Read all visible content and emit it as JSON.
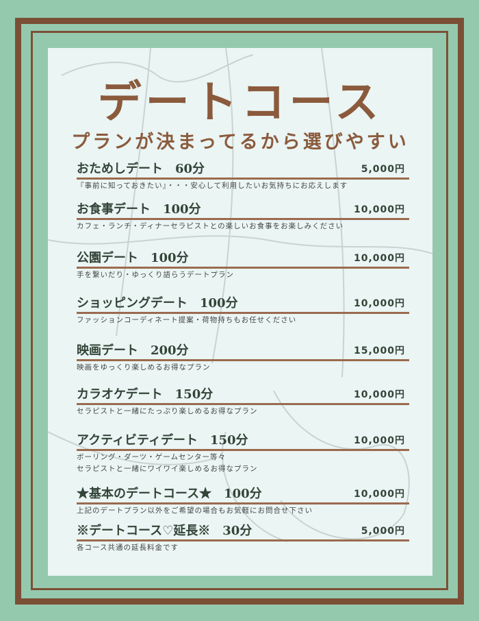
{
  "title": "デートコース",
  "subtitle": "プランが決まってるから選びやすい",
  "colors": {
    "background": "#95c9ae",
    "frame": "#7b4f35",
    "panel": "#eaf5f4",
    "title": "#8b5a3c",
    "text": "#334438"
  },
  "items": [
    {
      "name": "おためしデート　60分",
      "price": "5,000円",
      "desc": [
        "『事前に知っておきたい』・・・安心して利用したいお気持ちにお応えします"
      ]
    },
    {
      "name": "お食事デート　100分",
      "price": "10,000円",
      "desc": [
        "カフェ・ランチ・ディナーセラピストとの楽しいお食事をお楽しみください"
      ]
    },
    {
      "name": "公園デート　100分",
      "price": "10,000円",
      "desc": [
        "手を繋いだり・ゆっくり語らうデートプラン"
      ]
    },
    {
      "name": "ショッピングデート　100分",
      "price": "10,000円",
      "desc": [
        "ファッションコーディネート提案・荷物持ちもお任せください"
      ]
    },
    {
      "name": "映画デート　200分",
      "price": "15,000円",
      "desc": [
        "映画をゆっくり楽しめるお得なプラン"
      ]
    },
    {
      "name": "カラオケデート　150分",
      "price": "10,000円",
      "desc": [
        "セラピストと一緒にたっぷり楽しめるお得なプラン"
      ]
    },
    {
      "name": "アクティビティデート　150分",
      "price": "10,000円",
      "desc": [
        "ボーリング・ダーツ・ゲームセンター等々",
        "セラピストと一緒にワイワイ楽しめるお得なプラン"
      ]
    },
    {
      "name": "★基本のデートコース★　100分",
      "price": "10,000円",
      "desc": [
        "上記のデートプラン以外をご希望の場合もお気軽にお問合せ下さい"
      ]
    },
    {
      "name": "※デートコース♡延長※　30分",
      "price": "5,000円",
      "desc": [
        "各コース共通の延長料金です"
      ]
    }
  ]
}
